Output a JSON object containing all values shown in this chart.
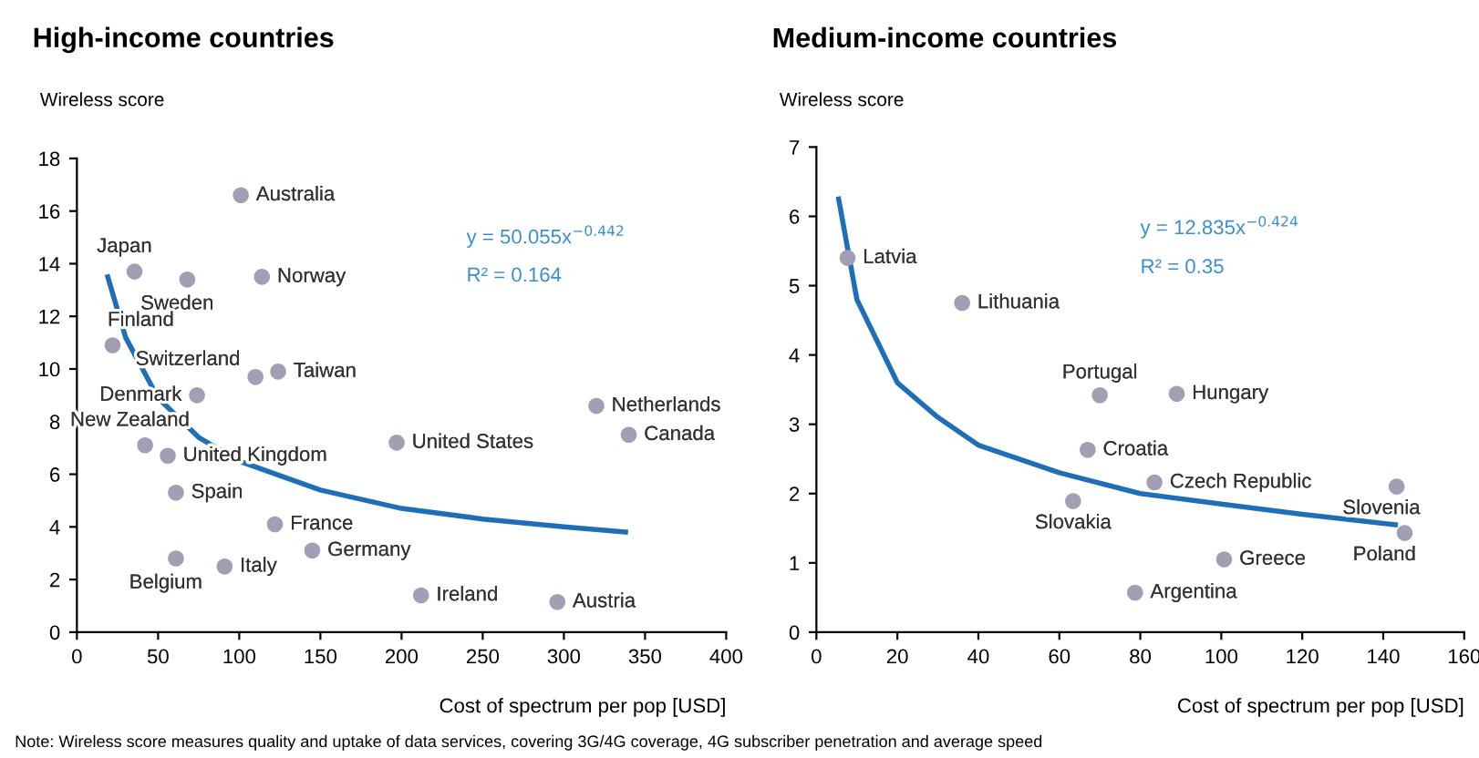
{
  "chart_data": [
    {
      "type": "scatter",
      "title": "High-income countries",
      "ylabel": "Wireless score",
      "xlabel": "Cost of spectrum per pop [USD]",
      "xlim": [
        0,
        400
      ],
      "xticks": [
        0,
        50,
        100,
        150,
        200,
        250,
        300,
        350,
        400
      ],
      "ylim": [
        0,
        18
      ],
      "yticks": [
        0,
        2,
        4,
        6,
        8,
        10,
        12,
        14,
        16,
        18
      ],
      "grid": false,
      "legend": false,
      "annotations": [
        "y = 50.055x$^{−0.442}$",
        "R² = 0.164",
        "Note: Wireless score measures quality and uptake of data services, covering 3G/4G coverage, 4G subscriber penetration and average speed"
      ],
      "series": [
        {
          "marker": "circle",
          "color": "#a29fb4",
          "x": [
            101,
            35.5,
            68,
            114,
            22,
            110,
            124,
            74,
            42,
            56,
            61,
            122,
            145,
            61,
            91,
            212,
            296,
            197,
            320,
            340
          ],
          "values": [
            16.6,
            13.7,
            13.4,
            13.5,
            10.9,
            9.7,
            9.9,
            9.0,
            7.1,
            6.7,
            5.3,
            4.1,
            3.1,
            2.8,
            2.5,
            1.4,
            1.15,
            7.2,
            8.6,
            7.5
          ],
          "value_labels": [
            "Australia",
            "Japan",
            "Sweden",
            "Norway",
            "Finland",
            "Switzerland",
            "Taiwan",
            "Denmark",
            "New Zealand",
            "United Kingdom",
            "Spain",
            "France",
            "Germany",
            "Belgium",
            "Italy",
            "Ireland",
            "Austria",
            "United States",
            "Netherlands",
            "Canada"
          ]
        },
        {
          "type": "line",
          "color": "#1f6fb8",
          "x": [
            19,
            30,
            50,
            75,
            100,
            150,
            200,
            250,
            300,
            338
          ],
          "values": [
            13.5,
            11.2,
            8.9,
            7.4,
            6.5,
            5.4,
            4.7,
            4.3,
            4.0,
            3.8
          ]
        }
      ]
    },
    {
      "type": "scatter",
      "title": "Medium-income countries",
      "ylabel": "Wireless score",
      "xlabel": "Cost of spectrum per pop [USD]",
      "xlim": [
        0,
        160
      ],
      "xticks": [
        0,
        20,
        40,
        60,
        80,
        100,
        120,
        140,
        160
      ],
      "ylim": [
        0,
        7
      ],
      "yticks": [
        0,
        1,
        2,
        3,
        4,
        5,
        6,
        7
      ],
      "grid": false,
      "legend": false,
      "annotations": [
        "y = 12.835x$^{−0.424}$",
        "R² = 0.35"
      ],
      "series": [
        {
          "marker": "circle",
          "color": "#a29fb4",
          "x": [
            7.7,
            36,
            70,
            89,
            67,
            83.5,
            63.4,
            143.3,
            145.3,
            100.7,
            78.7
          ],
          "values": [
            5.4,
            4.75,
            3.42,
            3.44,
            2.63,
            2.16,
            1.89,
            2.1,
            1.43,
            1.05,
            0.57
          ],
          "value_labels": [
            "Latvia",
            "Lithuania",
            "Portugal",
            "Hungary",
            "Croatia",
            "Czech Republic",
            "Slovakia",
            "Slovenia",
            "Poland",
            "Greece",
            "Argentina"
          ]
        },
        {
          "type": "line",
          "color": "#1f6fb8",
          "x": [
            5.5,
            10,
            20,
            30,
            40,
            60,
            80,
            100,
            120,
            143
          ],
          "values": [
            6.25,
            4.8,
            3.6,
            3.1,
            2.7,
            2.3,
            2.0,
            1.85,
            1.7,
            1.55
          ]
        }
      ]
    }
  ]
}
